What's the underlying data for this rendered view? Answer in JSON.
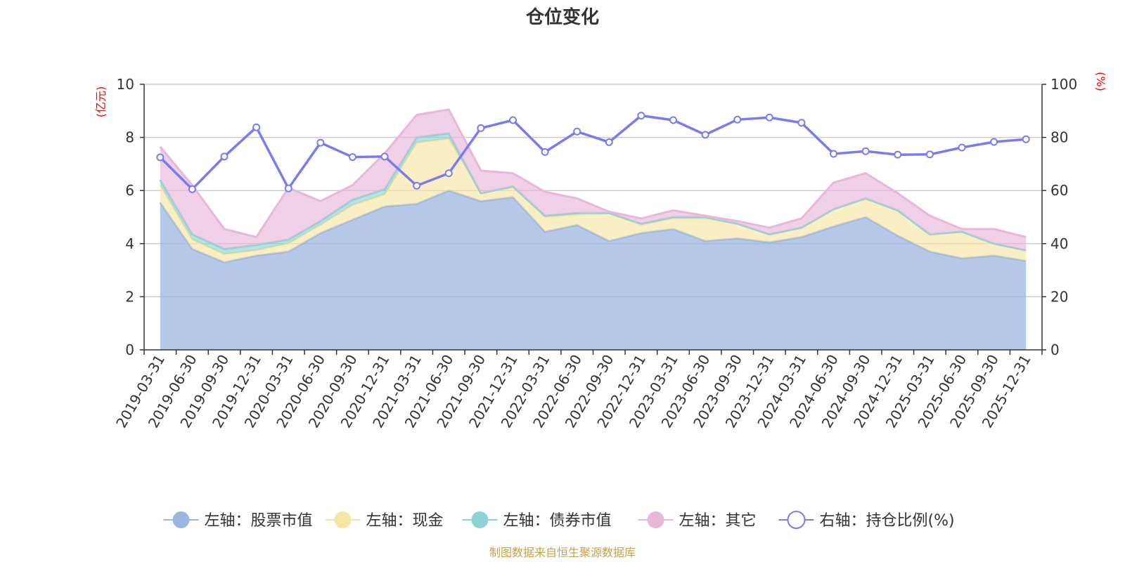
{
  "chart_data": {
    "type": "area",
    "title": "仓位变化",
    "left_unit": "(亿元)",
    "right_unit": "(%)",
    "left_ylim": [
      0,
      10
    ],
    "left_ticks": [
      "0",
      "2",
      "4",
      "6",
      "8",
      "10"
    ],
    "right_ylim": [
      0,
      100
    ],
    "right_ticks": [
      "0",
      "20",
      "40",
      "60",
      "80",
      "100"
    ],
    "categories": [
      "2019-03-31",
      "2019-06-30",
      "2019-09-30",
      "2019-12-31",
      "2020-03-31",
      "2020-06-30",
      "2020-09-30",
      "2020-12-31",
      "2021-03-31",
      "2021-06-30",
      "2021-09-30",
      "2021-12-31",
      "2022-03-31",
      "2022-06-30",
      "2022-09-30",
      "2022-12-31",
      "2023-03-31",
      "2023-06-30",
      "2023-09-30",
      "2023-12-31",
      "2024-03-31",
      "2024-06-30",
      "2024-09-30",
      "2024-12-31",
      "2025-03-31",
      "2025-06-30",
      "2025-09-30",
      "2025-12-31"
    ],
    "series": [
      {
        "name": "左轴：股票市值",
        "axis": "left",
        "stacked": true,
        "color": "#9db6e0",
        "values": [
          5.55,
          3.8,
          3.3,
          3.55,
          3.7,
          4.4,
          4.9,
          5.4,
          5.5,
          6.0,
          5.6,
          5.75,
          4.45,
          4.7,
          4.1,
          4.4,
          4.55,
          4.1,
          4.2,
          4.05,
          4.25,
          4.65,
          5.0,
          4.3,
          3.7,
          3.45,
          3.55,
          3.35
        ]
      },
      {
        "name": "左轴：现金",
        "axis": "left",
        "stacked": true,
        "color": "#f7e5a6",
        "values": [
          0.65,
          0.35,
          0.3,
          0.2,
          0.3,
          0.3,
          0.55,
          0.45,
          2.3,
          1.95,
          0.3,
          0.4,
          0.55,
          0.4,
          1.05,
          0.3,
          0.4,
          0.85,
          0.55,
          0.3,
          0.35,
          0.65,
          0.7,
          0.95,
          0.65,
          1.0,
          0.45,
          0.4
        ]
      },
      {
        "name": "左轴：债券市值",
        "axis": "left",
        "stacked": true,
        "color": "#8dd3d3",
        "values": [
          0.2,
          0.2,
          0.2,
          0.2,
          0.15,
          0.15,
          0.2,
          0.2,
          0.2,
          0.2,
          0,
          0,
          0.05,
          0.05,
          0,
          0.05,
          0.05,
          0.05,
          0,
          0,
          0,
          0,
          0,
          0,
          0,
          0,
          0,
          0
        ]
      },
      {
        "name": "左轴：其它",
        "axis": "left",
        "stacked": true,
        "color": "#e8b7da",
        "values": [
          1.25,
          1.85,
          0.75,
          0.3,
          1.95,
          0.75,
          0.55,
          1.35,
          0.85,
          0.9,
          0.85,
          0.5,
          0.9,
          0.55,
          0.05,
          0.2,
          0.25,
          0.05,
          0.1,
          0.25,
          0.35,
          1.0,
          0.95,
          0.65,
          0.7,
          0.1,
          0.55,
          0.5
        ]
      },
      {
        "name": "右轴：持仓比例(%)",
        "axis": "right",
        "stacked": false,
        "color": "#7b7bf0",
        "values": [
          72.5,
          60.5,
          72.8,
          83.8,
          60.8,
          78.0,
          72.6,
          72.8,
          61.8,
          66.5,
          83.5,
          86.5,
          74.5,
          82.2,
          78.2,
          88.2,
          86.5,
          81.0,
          86.7,
          87.5,
          85.5,
          73.8,
          74.8,
          73.5,
          73.6,
          76.2,
          78.3,
          79.3
        ]
      }
    ]
  },
  "legend": [
    {
      "label": "左轴：股票市值",
      "color": "#9db6e0",
      "style": "filled"
    },
    {
      "label": "左轴：现金",
      "color": "#f7e5a6",
      "style": "filled"
    },
    {
      "label": "左轴：债券市值",
      "color": "#8dd3d3",
      "style": "filled"
    },
    {
      "label": "左轴：其它",
      "color": "#e8b7da",
      "style": "filled"
    },
    {
      "label": "右轴：持仓比例(%)",
      "color": "#7b7bf0",
      "style": "hollow"
    }
  ],
  "source_text": "制图数据来自恒生聚源数据库"
}
